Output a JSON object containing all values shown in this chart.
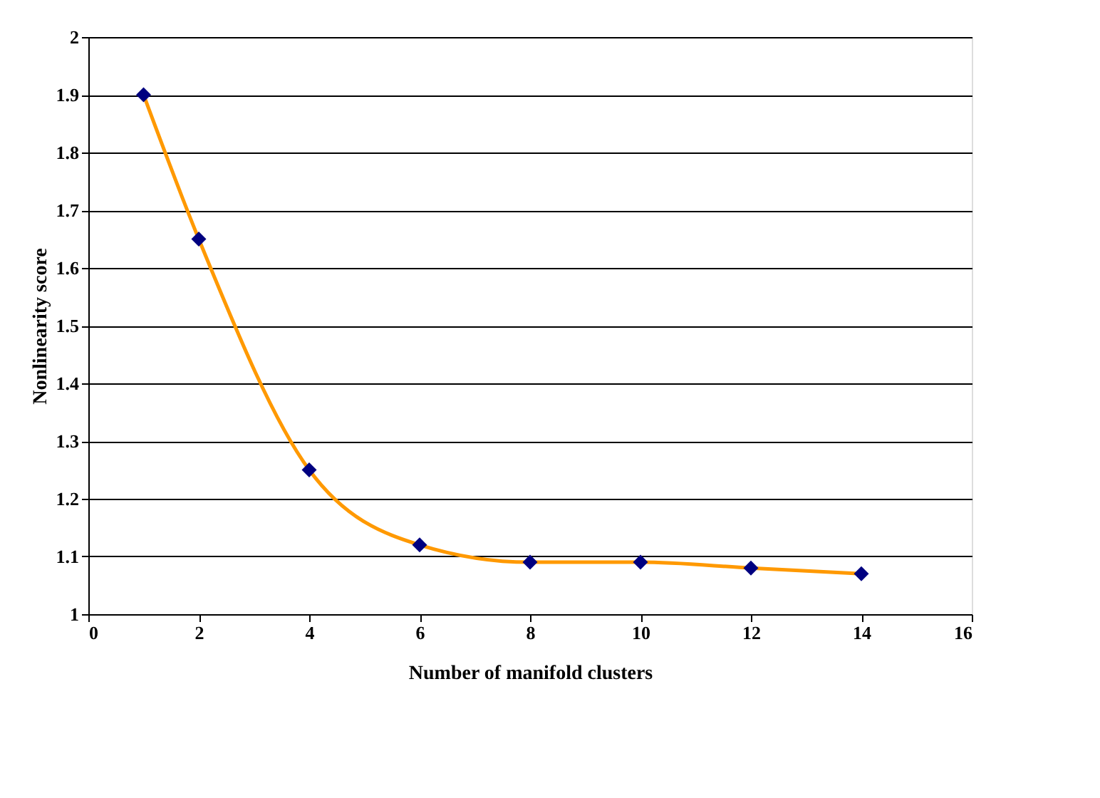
{
  "chart_data": {
    "type": "line",
    "xlabel": "Number of manifold clusters",
    "ylabel": "Nonlinearity score",
    "x": [
      1,
      2,
      4,
      6,
      8,
      10,
      12,
      14
    ],
    "series": [
      {
        "color": "#ff9900",
        "colors": [
          "#000080",
          "#000080",
          "#000080",
          "#000080",
          "#000080",
          "#000080",
          "#000080",
          "#000080"
        ],
        "values": [
          1.9,
          1.65,
          1.25,
          1.12,
          1.09,
          1.09,
          1.08,
          1.07
        ]
      }
    ],
    "xlim": [
      0,
      16
    ],
    "xticks": [
      0,
      2,
      4,
      6,
      8,
      10,
      12,
      14,
      16
    ],
    "ylim": [
      1,
      2
    ],
    "yticks": [
      1,
      1.1,
      1.2,
      1.3,
      1.4,
      1.5,
      1.6,
      1.7,
      1.8,
      1.9,
      2
    ],
    "grid": "y",
    "marker": "diamond",
    "line_style": "solid"
  }
}
